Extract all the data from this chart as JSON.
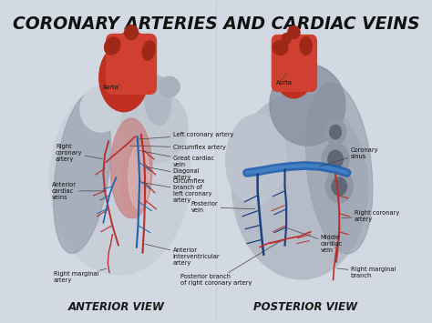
{
  "title": "CORONARY ARTERIES AND CARDIAC VEINS",
  "title_fontsize": 13.5,
  "title_color": "#111111",
  "background_color": "#d2d9e2",
  "left_label": "ANTERIOR VIEW",
  "right_label": "POSTERIOR VIEW",
  "view_label_fontsize": 8.5,
  "view_label_color": "#1a1a1a",
  "annotation_fontsize": 4.8,
  "annotation_color": "#111111",
  "artery_color": "#b83030",
  "vein_color": "#2060b0",
  "heart_grey": "#b8bfc8",
  "heart_grey2": "#c8cfd8",
  "heart_grey_dark": "#909aa8",
  "heart_red": "#c03020",
  "heart_red2": "#d04030",
  "heart_pink": "#d8a0a0",
  "aorta_dark": "#a02818",
  "vessel_grey": "#888fa0"
}
